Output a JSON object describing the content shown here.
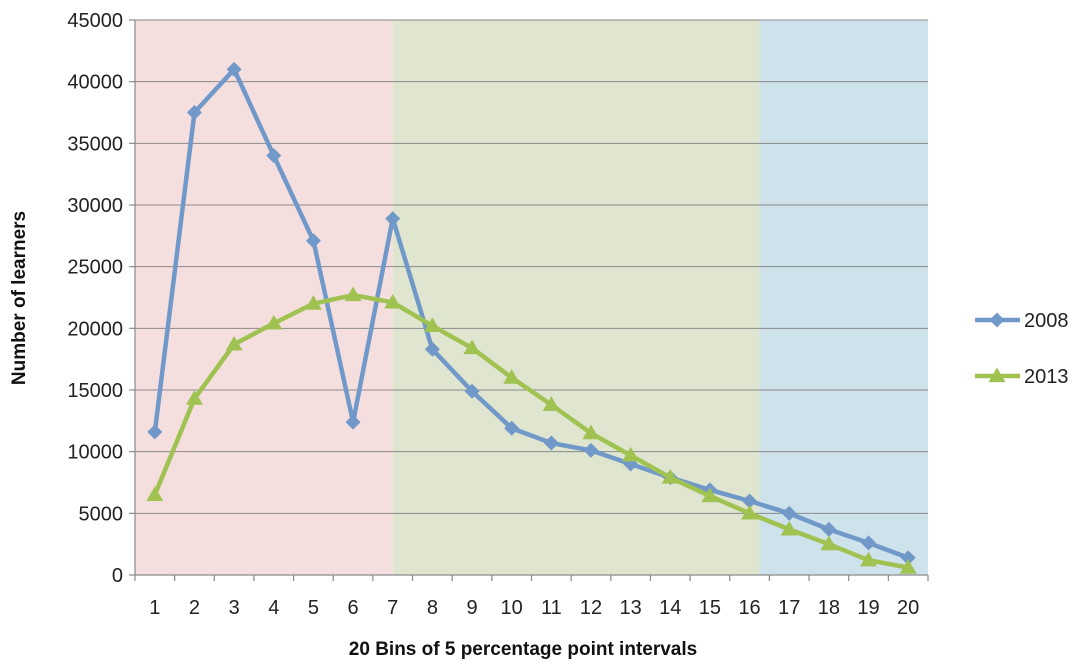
{
  "chart_data": {
    "type": "line",
    "title": "",
    "xlabel": "20 Bins of 5 percentage point intervals",
    "ylabel": "Number of learners",
    "x": [
      1,
      2,
      3,
      4,
      5,
      6,
      7,
      8,
      9,
      10,
      11,
      12,
      13,
      14,
      15,
      16,
      17,
      18,
      19,
      20
    ],
    "ylim": [
      0,
      45000
    ],
    "yticks": [
      0,
      5000,
      10000,
      15000,
      20000,
      25000,
      30000,
      35000,
      40000,
      45000
    ],
    "grid": true,
    "legend_position": "right",
    "background_bands": [
      {
        "from": 0.5,
        "to": 7,
        "color": "#f5dede"
      },
      {
        "from": 7,
        "to": 16.25,
        "color": "#dfe5cf"
      },
      {
        "from": 16.25,
        "to": 20.5,
        "color": "#cde2ea"
      }
    ],
    "series": [
      {
        "name": "2008",
        "marker": "diamond",
        "color": "#7098c8",
        "values": [
          11600,
          37500,
          41000,
          34000,
          27100,
          12400,
          28900,
          18300,
          14900,
          11900,
          10700,
          10100,
          9000,
          7900,
          6900,
          6000,
          5000,
          3700,
          2600,
          1400
        ]
      },
      {
        "name": "2013",
        "marker": "triangle",
        "color": "#9fc251",
        "values": [
          6500,
          14300,
          18700,
          20400,
          22000,
          22700,
          22100,
          20200,
          18400,
          16000,
          13800,
          11500,
          9700,
          7900,
          6400,
          5000,
          3700,
          2500,
          1200,
          600
        ]
      }
    ]
  }
}
